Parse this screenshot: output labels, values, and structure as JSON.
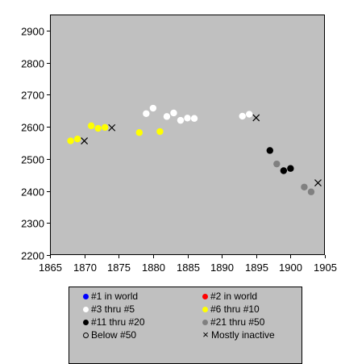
{
  "chart_data": {
    "type": "scatter",
    "title": "",
    "xlabel": "",
    "ylabel": "",
    "xlim": [
      1865,
      1905
    ],
    "ylim": [
      2200,
      2950
    ],
    "x_ticks": [
      1865,
      1870,
      1875,
      1880,
      1885,
      1890,
      1895,
      1900,
      1905
    ],
    "y_ticks": [
      2200,
      2300,
      2400,
      2500,
      2600,
      2700,
      2800,
      2900
    ],
    "grid": false,
    "legend_placement": "bottom",
    "series": [
      {
        "name": "#1 in world",
        "color": "#0000ff",
        "marker": "dot",
        "points": []
      },
      {
        "name": "#2 in world",
        "color": "#ff0000",
        "marker": "dot",
        "points": []
      },
      {
        "name": "#3 thru #5",
        "color": "#ffffff",
        "marker": "dot",
        "points": [
          [
            1879,
            2641
          ],
          [
            1880,
            2658
          ],
          [
            1882,
            2632
          ],
          [
            1883,
            2643
          ],
          [
            1884,
            2620
          ],
          [
            1885,
            2627
          ],
          [
            1886,
            2626
          ],
          [
            1893,
            2633
          ],
          [
            1894,
            2639
          ]
        ]
      },
      {
        "name": "#6 thru #10",
        "color": "#ffff00",
        "marker": "dot",
        "points": [
          [
            1868,
            2556
          ],
          [
            1869,
            2562
          ],
          [
            1871,
            2603
          ],
          [
            1872,
            2595
          ],
          [
            1873,
            2598
          ],
          [
            1878,
            2582
          ],
          [
            1881,
            2585
          ]
        ]
      },
      {
        "name": "#11 thru #20",
        "color": "#000000",
        "marker": "dot",
        "points": [
          [
            1897,
            2526
          ],
          [
            1899,
            2463
          ],
          [
            1900,
            2470
          ]
        ]
      },
      {
        "name": "#21 thru #50",
        "color": "#808080",
        "marker": "dot",
        "points": [
          [
            1898,
            2484
          ],
          [
            1902,
            2412
          ],
          [
            1903,
            2397
          ]
        ]
      },
      {
        "name": "Below #50",
        "color": "#ffffff",
        "marker": "ring",
        "points": []
      },
      {
        "name": "Mostly inactive",
        "color": "#000000",
        "marker": "x",
        "points": [
          [
            1870,
            2556
          ],
          [
            1874,
            2597
          ],
          [
            1895,
            2628
          ],
          [
            1904,
            2425
          ]
        ]
      }
    ]
  }
}
